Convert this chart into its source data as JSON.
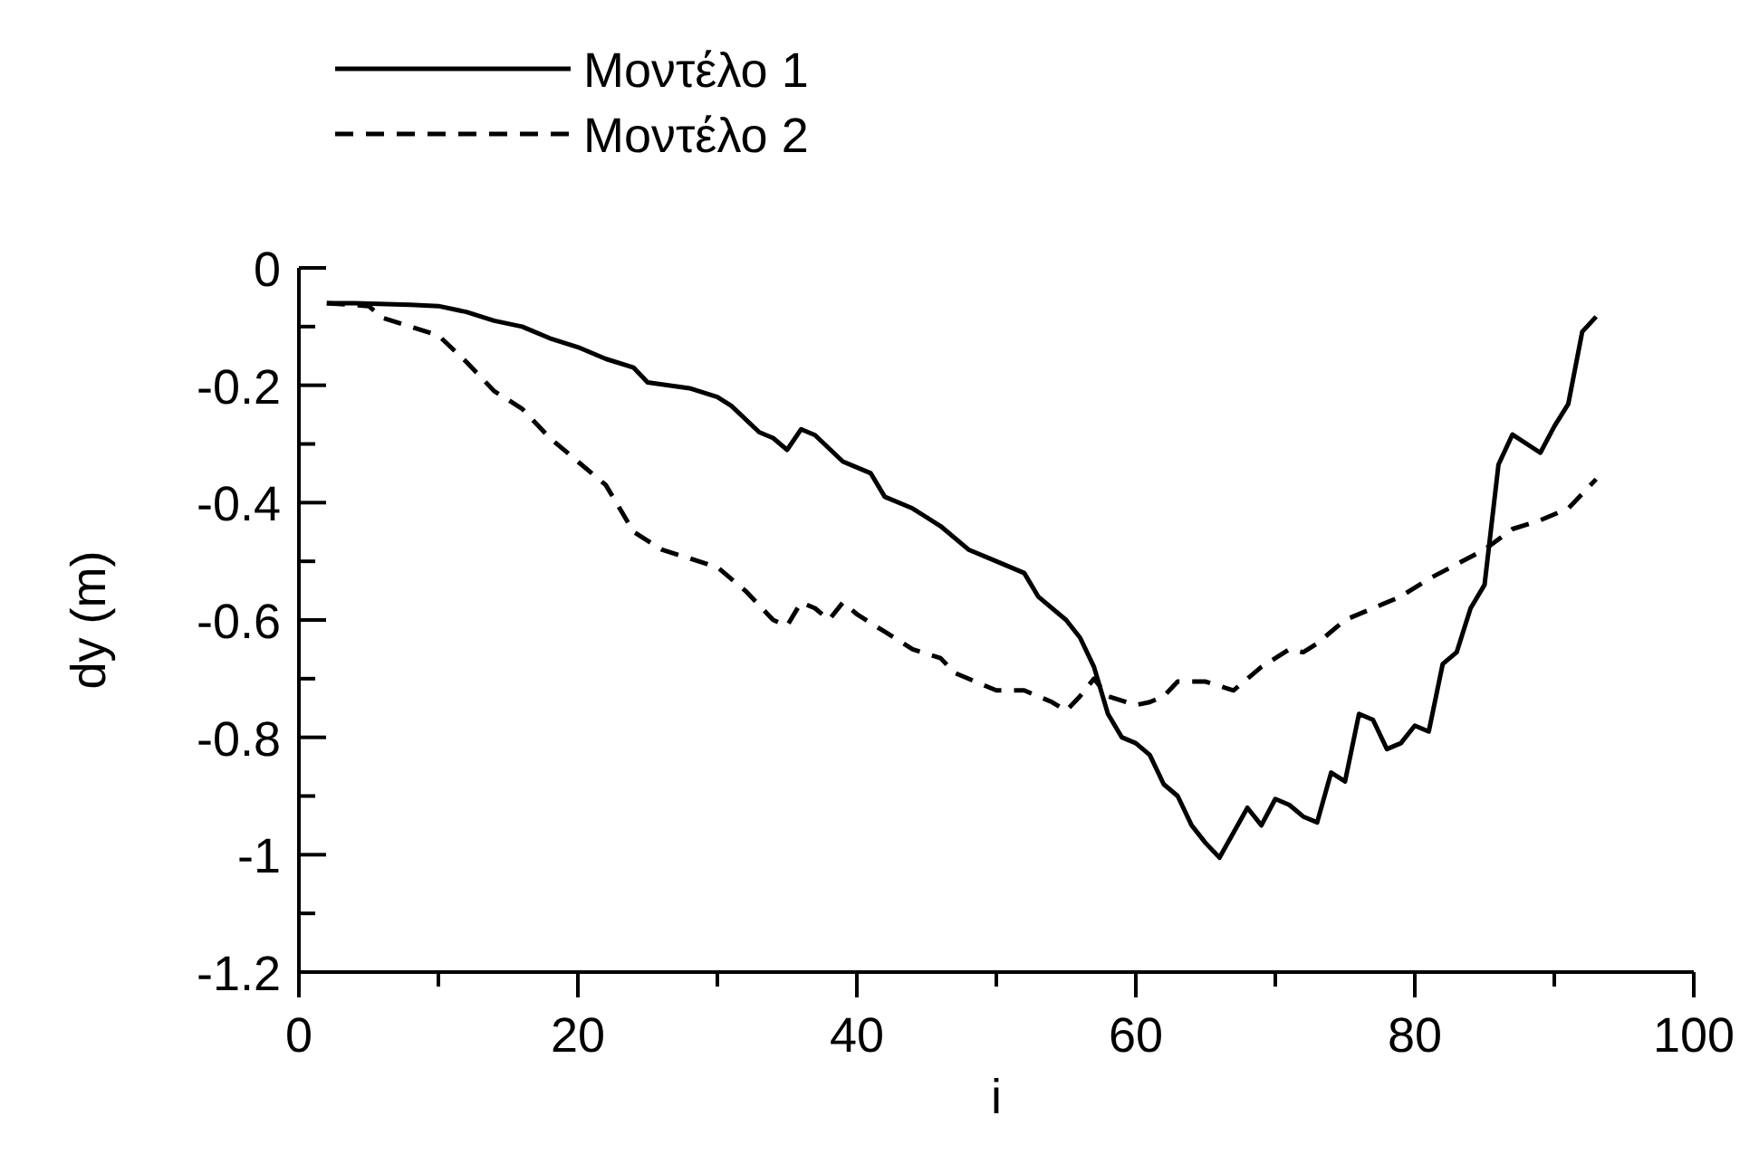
{
  "chart_data": {
    "type": "line",
    "xlabel": "i",
    "ylabel": "dy (m)",
    "xlim": [
      0,
      100
    ],
    "ylim": [
      -1.2,
      0
    ],
    "xticks": [
      0,
      {
        "value": 10,
        "label": null
      },
      20,
      {
        "value": 30,
        "label": null
      },
      40,
      {
        "value": 50,
        "label": null
      },
      60,
      {
        "value": 70,
        "label": null
      },
      80,
      {
        "value": 90,
        "label": null
      },
      100
    ],
    "yticks": [
      -1.2,
      {
        "value": -1.1,
        "label": null
      },
      -1,
      {
        "value": -0.9,
        "label": null
      },
      -0.8,
      {
        "value": -0.7,
        "label": null
      },
      -0.6,
      {
        "value": -0.5,
        "label": null
      },
      -0.4,
      {
        "value": -0.3,
        "label": null
      },
      -0.2,
      {
        "value": -0.1,
        "label": null
      },
      0
    ],
    "grid": false,
    "legend": "top left",
    "marker": "none",
    "series": [
      {
        "name": "Μοντέλο 1",
        "color": "#000000",
        "line_style": "solid",
        "x": [
          2,
          4,
          8,
          10,
          12,
          14,
          16,
          18,
          20,
          22,
          24,
          25,
          28,
          30,
          31,
          33,
          34,
          35,
          36,
          37,
          39,
          41,
          42,
          44,
          46,
          48,
          50,
          52,
          53,
          55,
          56,
          57,
          58,
          59,
          60,
          61,
          62,
          63,
          64,
          65,
          66,
          68,
          69,
          70,
          71,
          72,
          73,
          74,
          75,
          76,
          77,
          78,
          79,
          80,
          81,
          82,
          83,
          84,
          85,
          86,
          87,
          89,
          90,
          91,
          92,
          93
        ],
        "values": [
          -0.06,
          -0.06,
          -0.063,
          -0.065,
          -0.075,
          -0.09,
          -0.1,
          -0.12,
          -0.135,
          -0.155,
          -0.17,
          -0.195,
          -0.205,
          -0.22,
          -0.235,
          -0.28,
          -0.29,
          -0.31,
          -0.275,
          -0.285,
          -0.33,
          -0.35,
          -0.39,
          -0.41,
          -0.44,
          -0.48,
          -0.5,
          -0.52,
          -0.56,
          -0.6,
          -0.63,
          -0.68,
          -0.76,
          -0.8,
          -0.81,
          -0.83,
          -0.88,
          -0.9,
          -0.95,
          -0.98,
          -1.005,
          -0.92,
          -0.95,
          -0.905,
          -0.915,
          -0.935,
          -0.945,
          -0.86,
          -0.875,
          -0.76,
          -0.77,
          -0.82,
          -0.81,
          -0.78,
          -0.79,
          -0.675,
          -0.655,
          -0.58,
          -0.54,
          -0.335,
          -0.284,
          -0.315,
          -0.27,
          -0.232,
          -0.109,
          -0.083
        ]
      },
      {
        "name": "Μοντέλο 2",
        "color": "#000000",
        "line_style": "dashed",
        "x": [
          2,
          5,
          6,
          8,
          10,
          12,
          14,
          16,
          18,
          20,
          22,
          24,
          26,
          28,
          30,
          32,
          34,
          35,
          36,
          37,
          38,
          39,
          40,
          42,
          44,
          46,
          47,
          50,
          52,
          54,
          55,
          56,
          57,
          58,
          60,
          61,
          62,
          63,
          65,
          67,
          69,
          71,
          72,
          73,
          75,
          77,
          79,
          81,
          83,
          85,
          87,
          89,
          91,
          93
        ],
        "values": [
          -0.06,
          -0.065,
          -0.085,
          -0.1,
          -0.115,
          -0.16,
          -0.21,
          -0.24,
          -0.29,
          -0.33,
          -0.37,
          -0.45,
          -0.48,
          -0.495,
          -0.51,
          -0.55,
          -0.6,
          -0.61,
          -0.57,
          -0.58,
          -0.6,
          -0.57,
          -0.59,
          -0.62,
          -0.65,
          -0.665,
          -0.69,
          -0.72,
          -0.72,
          -0.74,
          -0.755,
          -0.73,
          -0.7,
          -0.73,
          -0.745,
          -0.74,
          -0.73,
          -0.705,
          -0.705,
          -0.72,
          -0.68,
          -0.65,
          -0.655,
          -0.64,
          -0.6,
          -0.58,
          -0.56,
          -0.53,
          -0.505,
          -0.48,
          -0.445,
          -0.43,
          -0.41,
          -0.36
        ]
      }
    ]
  }
}
